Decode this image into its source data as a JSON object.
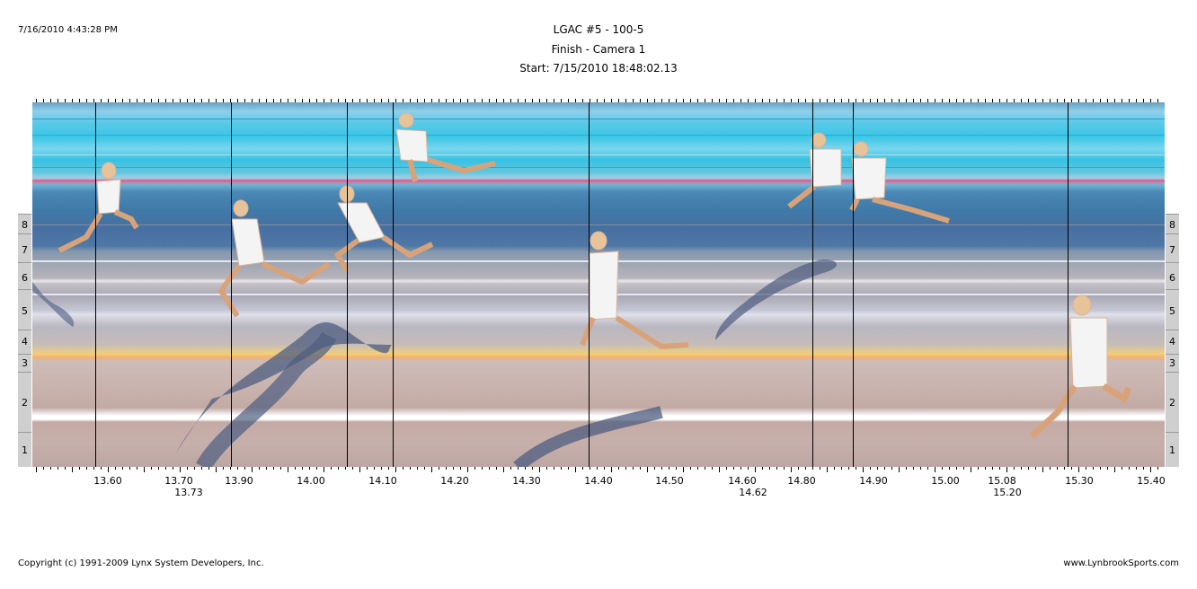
{
  "header": {
    "timestamp": "7/16/2010 4:43:28 PM",
    "event": "LGAC #5 - 100-5",
    "camera": "Finish - Camera 1",
    "start": "Start: 7/15/2010 18:48:02.13"
  },
  "footer": {
    "copyright": "Copyright (c) 1991-2009 Lynx System Developers, Inc.",
    "website": "www.LynbrookSports.com"
  },
  "lanes": [
    "8",
    "7",
    "6",
    "5",
    "4",
    "3",
    "2",
    "1"
  ],
  "time_axis": {
    "labels": [
      "13.60",
      "13.70",
      "13.90",
      "14.00",
      "14.10",
      "14.20",
      "14.30",
      "14.40",
      "14.50",
      "14.60",
      "14.80",
      "14.90",
      "15.00",
      "15.08",
      "15.30",
      "15.40"
    ],
    "second_row_labels": [
      "13.73",
      "14.62",
      "15.20"
    ]
  },
  "colors": {
    "sky": "#5ec9e9",
    "track": "#c7b0ab",
    "lane_box": "#cfcfcf",
    "time_line": "#000000"
  }
}
